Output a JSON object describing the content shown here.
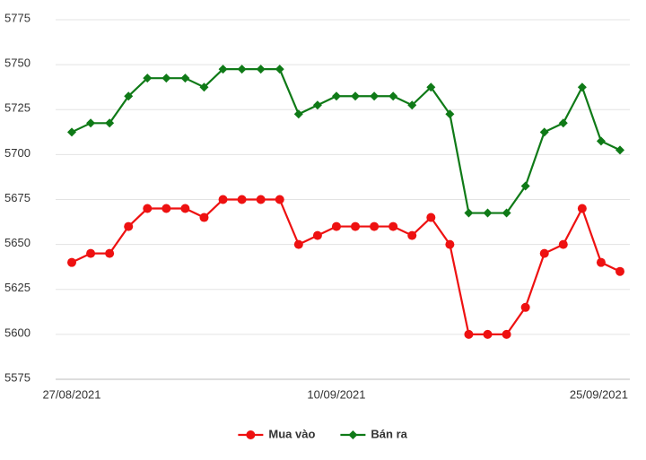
{
  "chart_data": {
    "type": "line",
    "categories": [
      "27/08/2021",
      null,
      null,
      null,
      null,
      null,
      null,
      null,
      null,
      null,
      null,
      null,
      null,
      null,
      "10/09/2021",
      null,
      null,
      null,
      null,
      null,
      null,
      null,
      null,
      null,
      null,
      null,
      null,
      null,
      null,
      "25/09/2021"
    ],
    "series": [
      {
        "name": "Mua vào",
        "color": "#ee1111",
        "marker": "circle",
        "values": [
          5640,
          5645,
          5645,
          5660,
          5670,
          5670,
          5670,
          5665,
          5675,
          5675,
          5675,
          5675,
          5650,
          5655,
          5660,
          5660,
          5660,
          5660,
          5655,
          5665,
          5650,
          5600,
          5600,
          5600,
          5615,
          5645,
          5650,
          5670,
          5640,
          5635
        ]
      },
      {
        "name": "Bán ra",
        "color": "#0f7a17",
        "marker": "diamond",
        "values": [
          5712.5,
          5717.5,
          5717.5,
          5732.5,
          5742.5,
          5742.5,
          5742.5,
          5737.5,
          5747.5,
          5747.5,
          5747.5,
          5747.5,
          5722.5,
          5727.5,
          5732.5,
          5732.5,
          5732.5,
          5732.5,
          5727.5,
          5737.5,
          5722.5,
          5667.5,
          5667.5,
          5667.5,
          5682.5,
          5712.5,
          5717.5,
          5737.5,
          5707.5,
          5702.5
        ]
      }
    ],
    "ylim": [
      5575,
      5775
    ],
    "yticks": [
      5575,
      5600,
      5625,
      5650,
      5675,
      5700,
      5725,
      5750,
      5775
    ],
    "grid": true,
    "legend": "bottom"
  }
}
